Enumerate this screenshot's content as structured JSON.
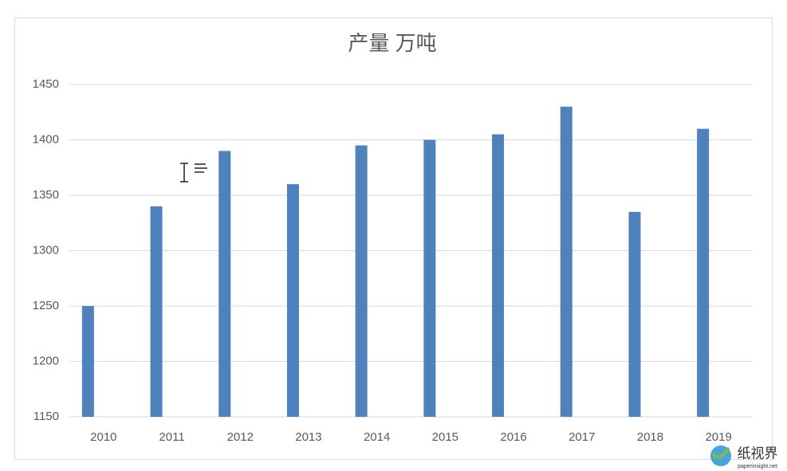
{
  "chart_data": {
    "type": "bar",
    "title": "产量  万吨",
    "categories": [
      "2010",
      "2011",
      "2012",
      "2013",
      "2014",
      "2015",
      "2016",
      "2017",
      "2018",
      "2019"
    ],
    "values": [
      1250,
      1340,
      1390,
      1360,
      1395,
      1400,
      1405,
      1430,
      1335,
      1410
    ],
    "color": "#4f81bd",
    "ylim": [
      1150,
      1450
    ],
    "yticks": [
      1150,
      1200,
      1250,
      1300,
      1350,
      1400,
      1450
    ],
    "grid": true
  },
  "watermark": {
    "name": "纸视界",
    "url": "paperinsight.net"
  }
}
